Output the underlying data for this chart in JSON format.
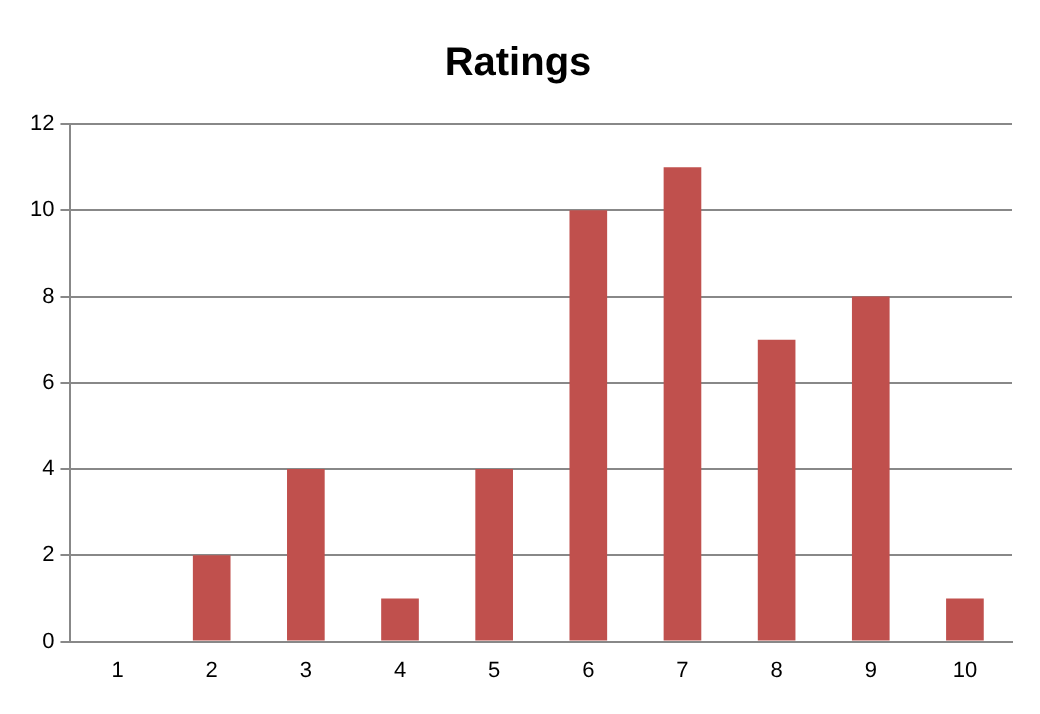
{
  "chart_data": {
    "type": "bar",
    "title": "Ratings",
    "categories": [
      "1",
      "2",
      "3",
      "4",
      "5",
      "6",
      "7",
      "8",
      "9",
      "10"
    ],
    "values": [
      0,
      2,
      4,
      1,
      4,
      10,
      11,
      7,
      8,
      1
    ],
    "color": "#c0504d",
    "ylim": [
      0,
      12
    ],
    "yticks": [
      0,
      2,
      4,
      6,
      8,
      10,
      12
    ],
    "grid": "y",
    "legend": false
  }
}
